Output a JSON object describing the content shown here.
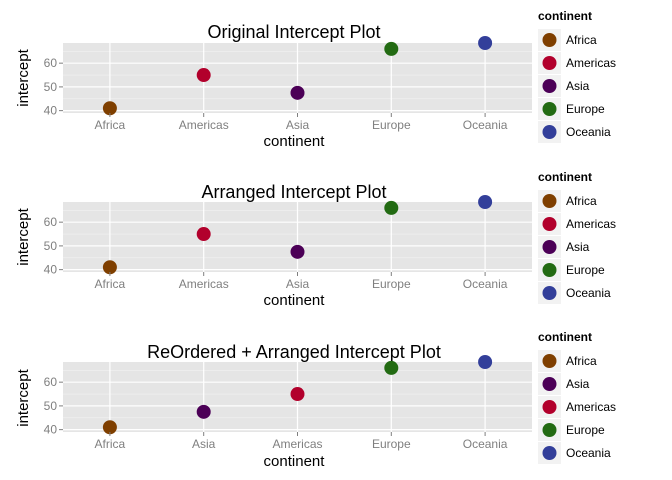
{
  "chart_data": [
    {
      "type": "scatter",
      "title": "Original Intercept Plot",
      "xlabel": "continent",
      "ylabel": "intercept",
      "categories": [
        "Africa",
        "Americas",
        "Asia",
        "Europe",
        "Oceania"
      ],
      "values": [
        41,
        55,
        47.5,
        66,
        68.5
      ],
      "colors": [
        "#7f3f00",
        "#b2002c",
        "#4c0057",
        "#236b13",
        "#333f9a"
      ],
      "yticks": [
        40,
        50,
        60
      ],
      "ylim": [
        39,
        68.5
      ],
      "grid": true,
      "legend": {
        "title": "continent",
        "position": "right",
        "items": [
          {
            "label": "Africa",
            "color": "#7f3f00"
          },
          {
            "label": "Americas",
            "color": "#b2002c"
          },
          {
            "label": "Asia",
            "color": "#4c0057"
          },
          {
            "label": "Europe",
            "color": "#236b13"
          },
          {
            "label": "Oceania",
            "color": "#333f9a"
          }
        ]
      }
    },
    {
      "type": "scatter",
      "title": "Arranged Intercept Plot",
      "xlabel": "continent",
      "ylabel": "intercept",
      "categories": [
        "Africa",
        "Americas",
        "Asia",
        "Europe",
        "Oceania"
      ],
      "values": [
        41,
        55,
        47.5,
        66,
        68.5
      ],
      "colors": [
        "#7f3f00",
        "#b2002c",
        "#4c0057",
        "#236b13",
        "#333f9a"
      ],
      "yticks": [
        40,
        50,
        60
      ],
      "ylim": [
        39,
        68.5
      ],
      "grid": true,
      "legend": {
        "title": "continent",
        "position": "right",
        "items": [
          {
            "label": "Africa",
            "color": "#7f3f00"
          },
          {
            "label": "Americas",
            "color": "#b2002c"
          },
          {
            "label": "Asia",
            "color": "#4c0057"
          },
          {
            "label": "Europe",
            "color": "#236b13"
          },
          {
            "label": "Oceania",
            "color": "#333f9a"
          }
        ]
      }
    },
    {
      "type": "scatter",
      "title": "ReOrdered + Arranged Intercept Plot",
      "xlabel": "continent",
      "ylabel": "intercept",
      "categories": [
        "Africa",
        "Asia",
        "Americas",
        "Europe",
        "Oceania"
      ],
      "values": [
        41,
        47.5,
        55,
        66,
        68.5
      ],
      "colors": [
        "#7f3f00",
        "#4c0057",
        "#b2002c",
        "#236b13",
        "#333f9a"
      ],
      "yticks": [
        40,
        50,
        60
      ],
      "ylim": [
        39,
        68.5
      ],
      "grid": true,
      "legend": {
        "title": "continent",
        "position": "right",
        "items": [
          {
            "label": "Africa",
            "color": "#7f3f00"
          },
          {
            "label": "Asia",
            "color": "#4c0057"
          },
          {
            "label": "Americas",
            "color": "#b2002c"
          },
          {
            "label": "Europe",
            "color": "#236b13"
          },
          {
            "label": "Oceania",
            "color": "#333f9a"
          }
        ]
      }
    }
  ],
  "style": {
    "panel_background": "#e5e5e5",
    "grid_major": "#ffffff",
    "grid_minor": "#f2f2f2",
    "legend_key_background": "#f2f2f2"
  }
}
